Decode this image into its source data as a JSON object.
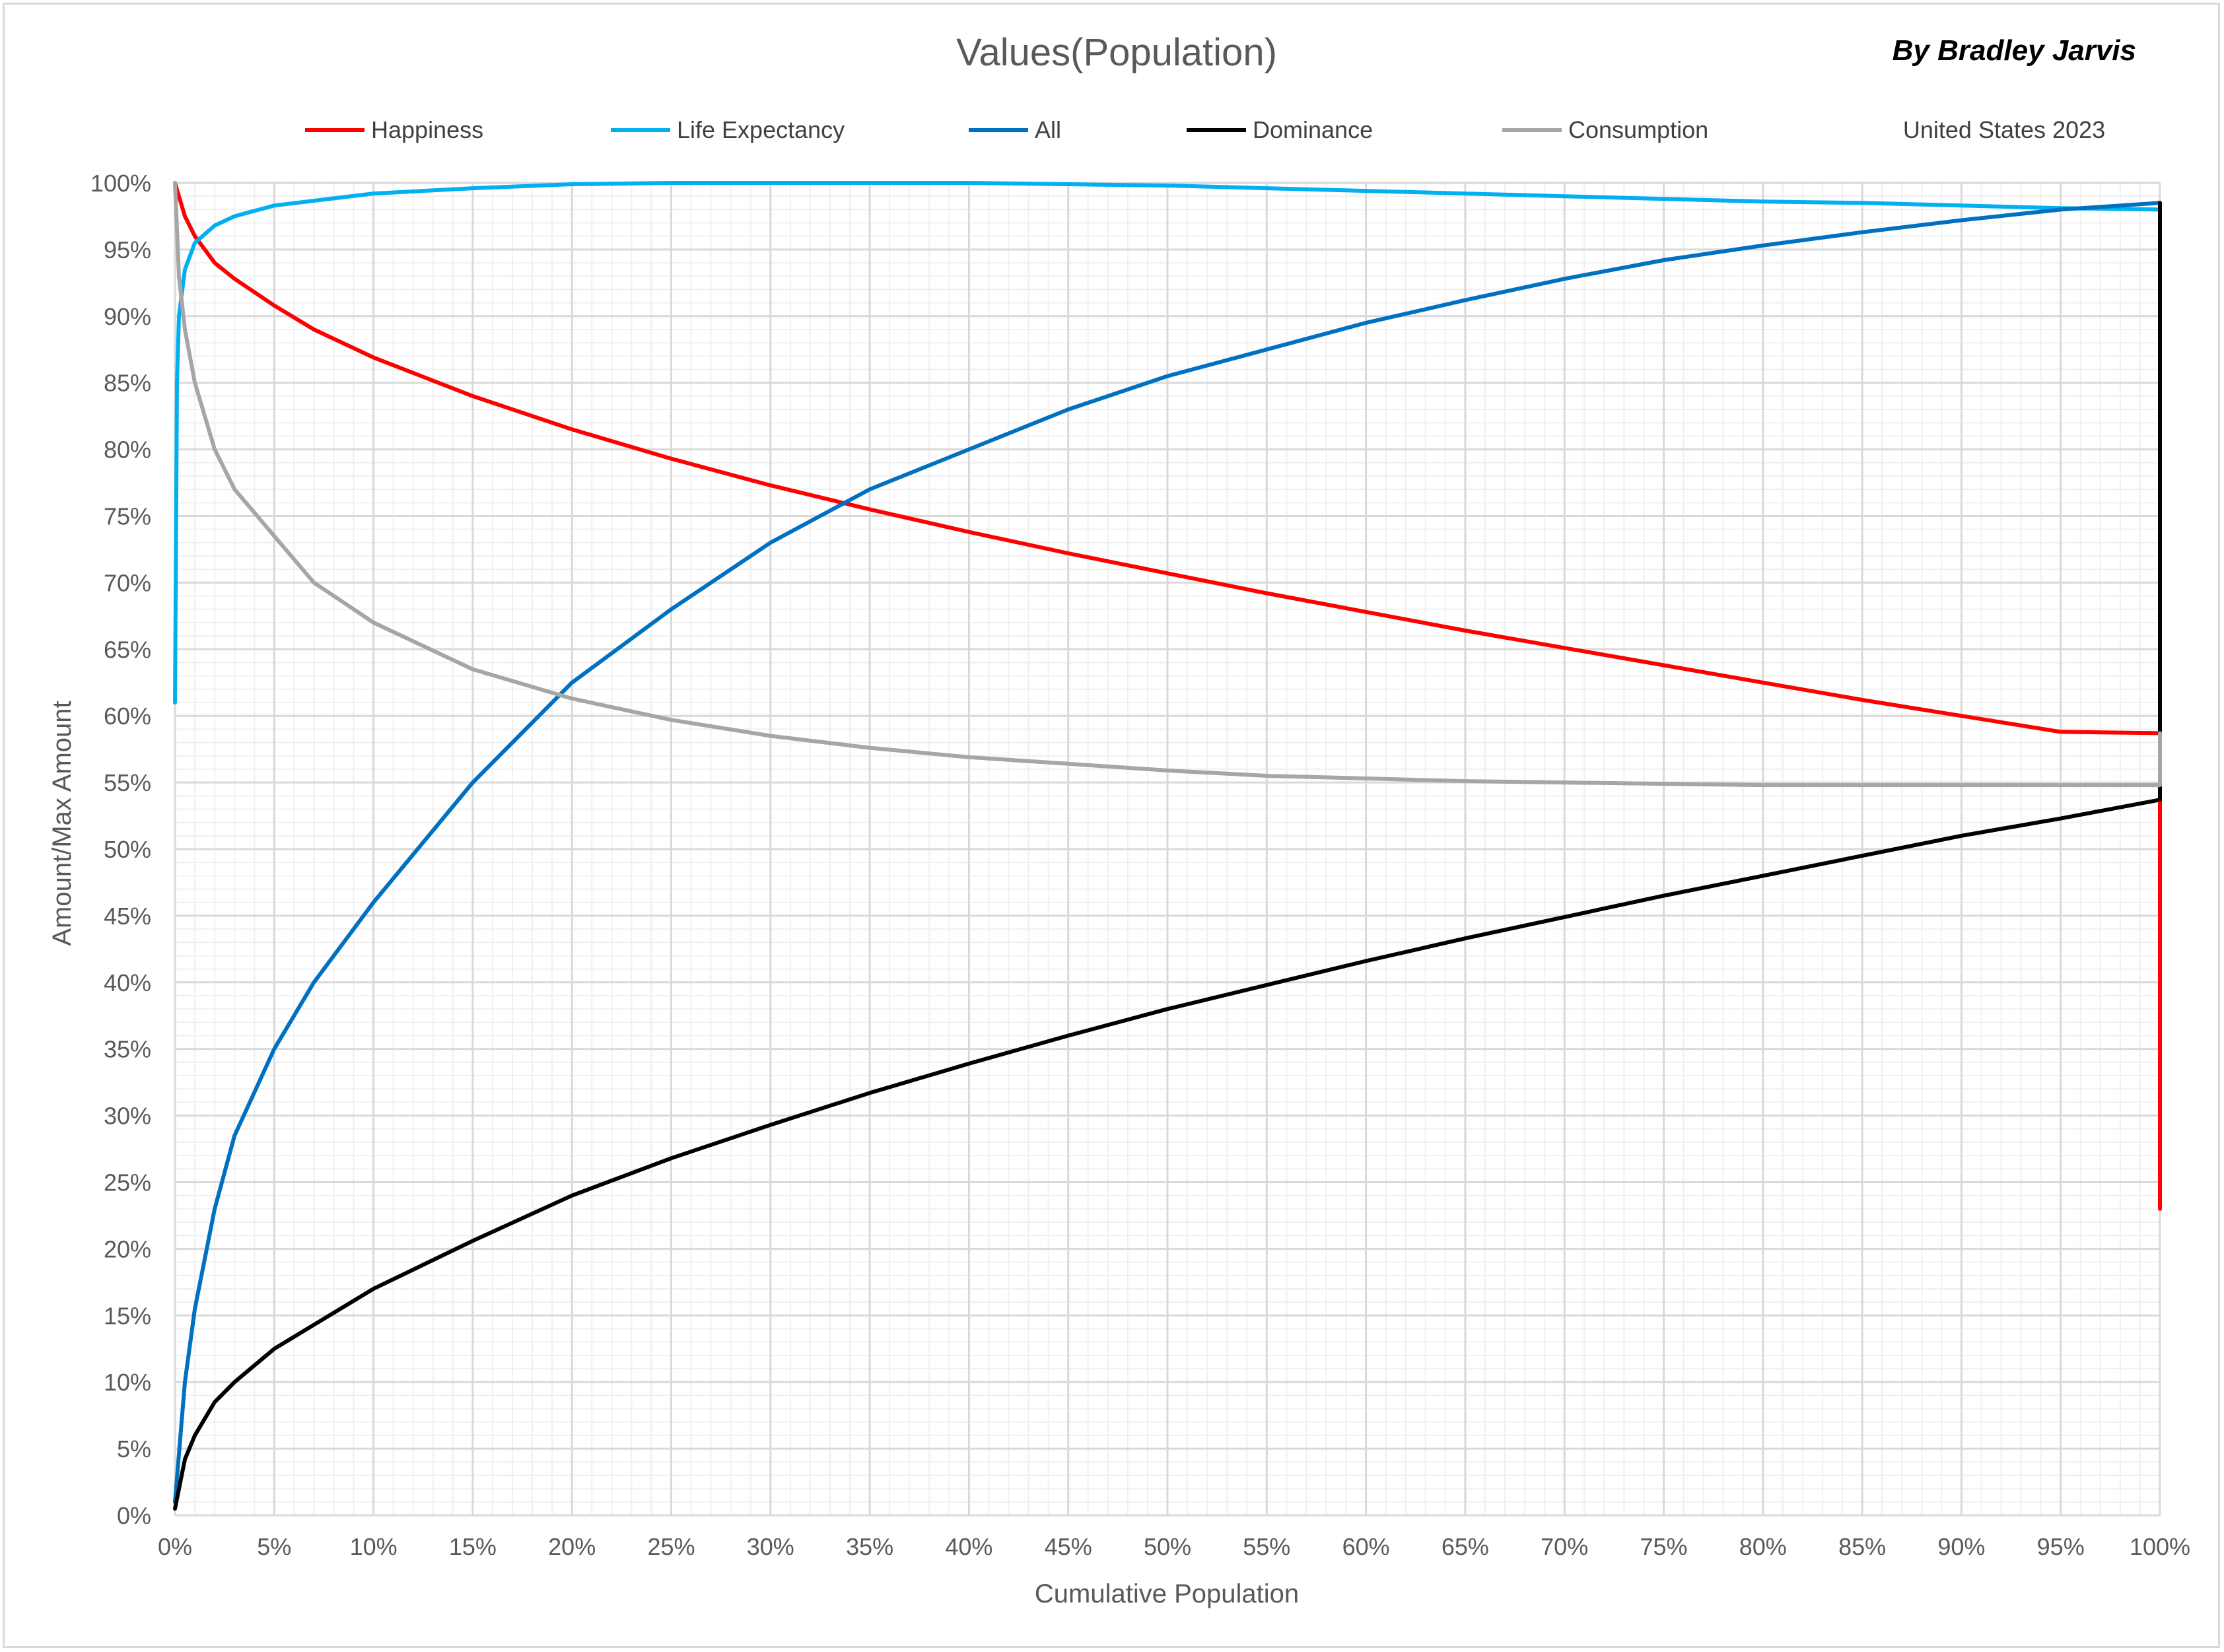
{
  "chart_data": {
    "type": "line",
    "title": "Values(Population)",
    "author": "By Bradley Jarvis",
    "note": "United States 2023",
    "xlabel": "Cumulative Population",
    "ylabel": "Amount/Max Amount",
    "xlim": [
      0,
      100
    ],
    "ylim": [
      0,
      100
    ],
    "x_ticks": [
      "0%",
      "5%",
      "10%",
      "15%",
      "20%",
      "25%",
      "30%",
      "35%",
      "40%",
      "45%",
      "50%",
      "55%",
      "60%",
      "65%",
      "70%",
      "75%",
      "80%",
      "85%",
      "90%",
      "95%",
      "100%"
    ],
    "y_ticks": [
      "0%",
      "5%",
      "10%",
      "15%",
      "20%",
      "25%",
      "30%",
      "35%",
      "40%",
      "45%",
      "50%",
      "55%",
      "60%",
      "65%",
      "70%",
      "75%",
      "80%",
      "85%",
      "90%",
      "95%",
      "100%"
    ],
    "grid": "major and minor",
    "legend_position": "top",
    "series": [
      {
        "name": "Happiness",
        "color": "#ff0000",
        "x": [
          0,
          0.5,
          1,
          2,
          3,
          5,
          7,
          10,
          15,
          20,
          25,
          30,
          35,
          40,
          45,
          50,
          55,
          60,
          65,
          70,
          75,
          80,
          85,
          90,
          95,
          100,
          100
        ],
        "y": [
          100,
          97.5,
          96,
          94,
          92.8,
          90.8,
          89,
          86.9,
          84,
          81.5,
          79.3,
          77.3,
          75.5,
          73.8,
          72.2,
          70.7,
          69.2,
          67.8,
          66.4,
          65.1,
          63.8,
          62.5,
          61.2,
          60,
          58.8,
          58.7,
          23
        ]
      },
      {
        "name": "Life Expectancy",
        "color": "#00b0f0",
        "x": [
          0,
          0.1,
          0.2,
          0.5,
          1,
          2,
          3,
          5,
          10,
          15,
          20,
          25,
          30,
          35,
          40,
          45,
          50,
          55,
          60,
          65,
          70,
          75,
          80,
          85,
          90,
          95,
          100
        ],
        "y": [
          61,
          85,
          90,
          93.5,
          95.5,
          96.8,
          97.5,
          98.3,
          99.2,
          99.6,
          99.9,
          100,
          100,
          100,
          100,
          99.9,
          99.8,
          99.6,
          99.4,
          99.2,
          99,
          98.8,
          98.6,
          98.5,
          98.3,
          98.1,
          98
        ]
      },
      {
        "name": "All",
        "color": "#0070c0",
        "x": [
          0,
          0.5,
          1,
          2,
          3,
          5,
          7,
          10,
          15,
          20,
          25,
          30,
          35,
          40,
          45,
          50,
          55,
          60,
          65,
          70,
          75,
          80,
          85,
          90,
          95,
          100
        ],
        "y": [
          1,
          10,
          15.5,
          23,
          28.5,
          35,
          40,
          46,
          55,
          62.5,
          68,
          73,
          77,
          80,
          83,
          85.5,
          87.5,
          89.5,
          91.2,
          92.8,
          94.2,
          95.3,
          96.3,
          97.2,
          98,
          98.5
        ]
      },
      {
        "name": "Dominance",
        "color": "#000000",
        "x": [
          0,
          0.5,
          1,
          2,
          3,
          5,
          7,
          10,
          15,
          20,
          25,
          30,
          35,
          40,
          45,
          50,
          55,
          60,
          65,
          70,
          75,
          80,
          85,
          90,
          95,
          100,
          100
        ],
        "y": [
          0.5,
          4.2,
          6,
          8.5,
          10,
          12.5,
          14.3,
          17,
          20.6,
          24,
          26.8,
          29.3,
          31.7,
          33.9,
          36,
          38,
          39.8,
          41.6,
          43.3,
          44.9,
          46.5,
          48,
          49.5,
          51,
          52.3,
          53.7,
          98.5
        ]
      },
      {
        "name": "Consumption",
        "color": "#a6a6a6",
        "x": [
          0,
          0.2,
          0.5,
          1,
          2,
          3,
          5,
          7,
          10,
          15,
          20,
          25,
          30,
          35,
          40,
          45,
          50,
          55,
          60,
          65,
          70,
          75,
          80,
          85,
          90,
          95,
          100,
          100
        ],
        "y": [
          100,
          93,
          89,
          85,
          80,
          77,
          73.5,
          70,
          67,
          63.5,
          61.3,
          59.7,
          58.5,
          57.6,
          56.9,
          56.4,
          55.9,
          55.5,
          55.3,
          55.1,
          55,
          54.9,
          54.8,
          54.8,
          54.8,
          54.8,
          54.8,
          58.7
        ]
      }
    ]
  }
}
